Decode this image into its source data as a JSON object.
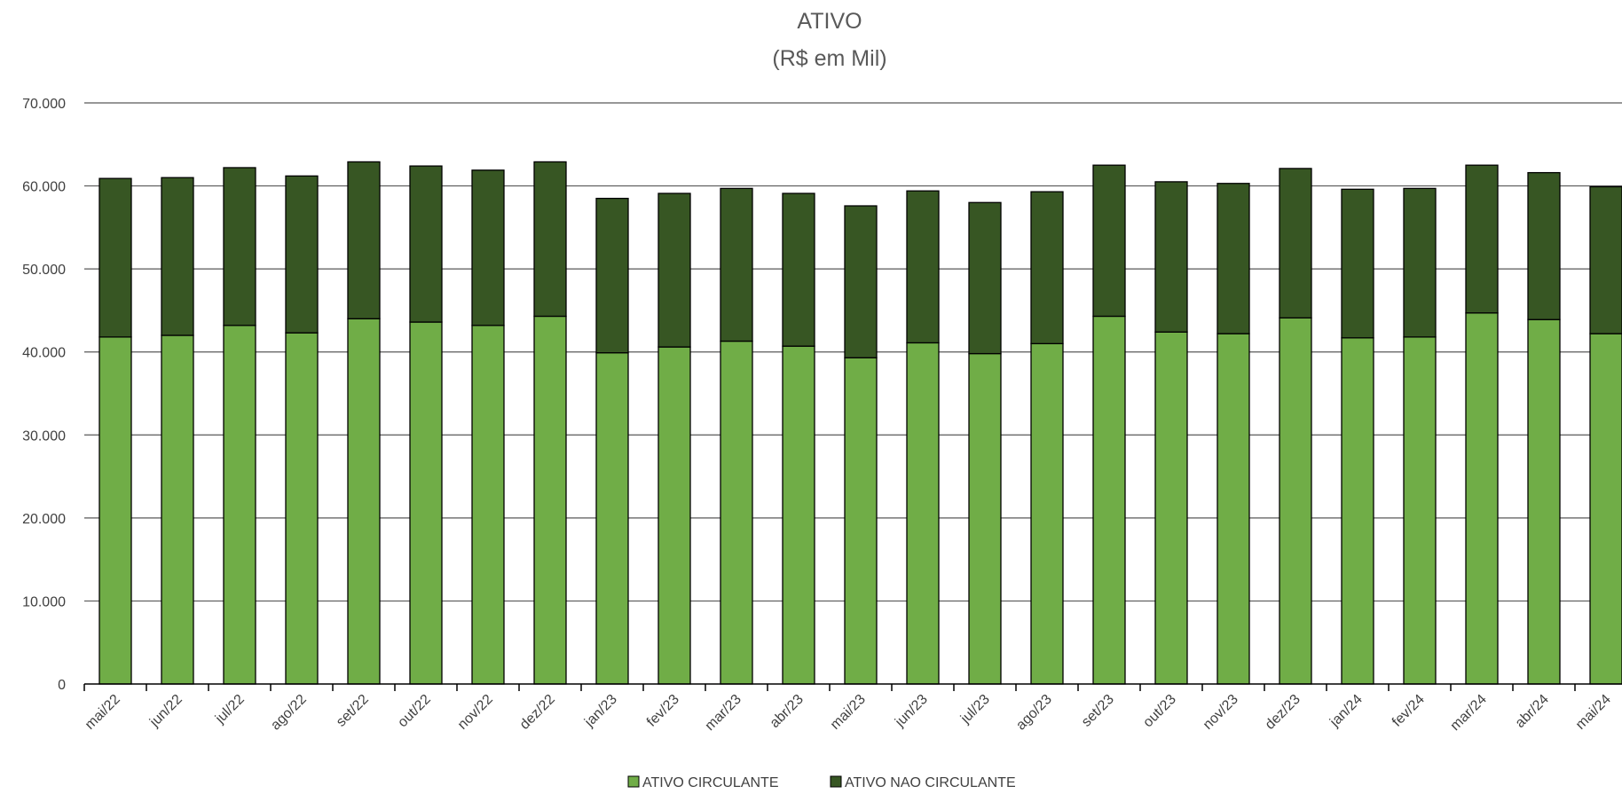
{
  "chart_data": {
    "type": "bar",
    "stacked": true,
    "title": "ATIVO",
    "subtitle": "(R$ em Mil)",
    "xlabel": "",
    "ylabel": "",
    "ylim": [
      0,
      70000
    ],
    "yticks": [
      0,
      10000,
      20000,
      30000,
      40000,
      50000,
      60000,
      70000
    ],
    "ytick_labels": [
      "0",
      "10.000",
      "20.000",
      "30.000",
      "40.000",
      "50.000",
      "60.000",
      "70.000"
    ],
    "grid": true,
    "legend_position": "bottom",
    "categories": [
      "mai/22",
      "jun/22",
      "jul/22",
      "ago/22",
      "set/22",
      "out/22",
      "nov/22",
      "dez/22",
      "jan/23",
      "fev/23",
      "mar/23",
      "abr/23",
      "mai/23",
      "jun/23",
      "jul/23",
      "ago/23",
      "set/23",
      "out/23",
      "nov/23",
      "dez/23",
      "jan/24",
      "fev/24",
      "mar/24",
      "abr/24",
      "mai/24"
    ],
    "series": [
      {
        "name": "ATIVO CIRCULANTE",
        "color": "#70ad47",
        "values": [
          41800,
          42000,
          43200,
          42300,
          44000,
          43600,
          43200,
          44300,
          39900,
          40600,
          41300,
          40700,
          39300,
          41100,
          39800,
          41000,
          44300,
          42400,
          42200,
          44100,
          41700,
          41800,
          44700,
          43900,
          42200
        ]
      },
      {
        "name": "ATIVO NAO CIRCULANTE",
        "color": "#375623",
        "values": [
          19100,
          19000,
          19000,
          18900,
          18900,
          18800,
          18700,
          18600,
          18600,
          18500,
          18400,
          18400,
          18300,
          18300,
          18200,
          18300,
          18200,
          18100,
          18100,
          18000,
          17900,
          17900,
          17800,
          17700,
          17700
        ]
      }
    ]
  }
}
